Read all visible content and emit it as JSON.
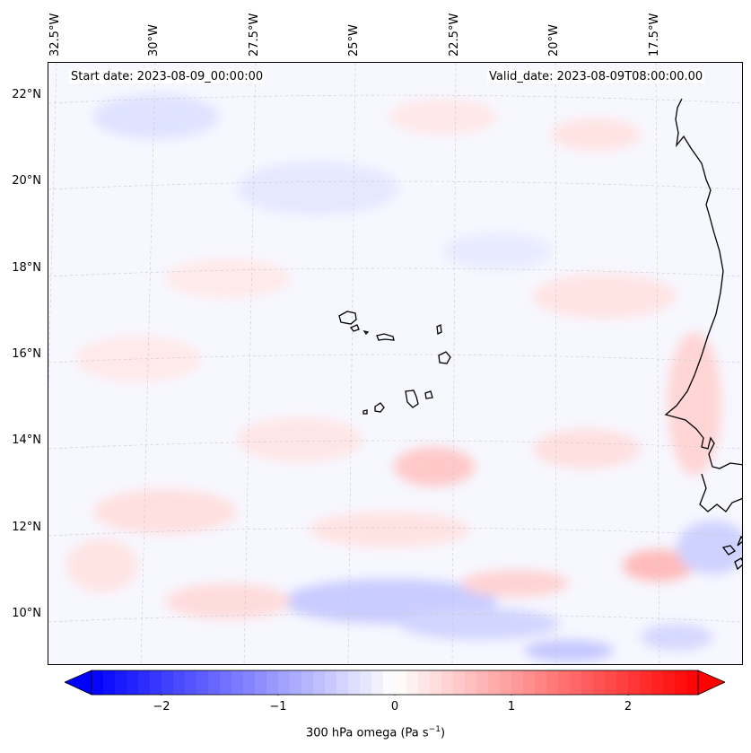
{
  "header": {
    "start_date": "Start date: 2023-08-09_00:00:00",
    "valid_date": "Valid_date: 2023-08-09T08:00:00.00"
  },
  "map": {
    "lon_labels": [
      "32.5°W",
      "30°W",
      "27.5°W",
      "25°W",
      "22.5°W",
      "20°W",
      "17.5°W"
    ],
    "lat_labels": [
      "22°N",
      "20°N",
      "18°N",
      "16°N",
      "14°N",
      "12°N",
      "10°N"
    ],
    "gridlines": "dashed",
    "field": "300 hPa omega",
    "features": [
      "Cape Verde islands",
      "West African coastline"
    ]
  },
  "colorbar": {
    "label_main": "300 hPa omega (Pa s",
    "label_sup": "−1",
    "label_end": ")",
    "ticks": [
      "−2",
      "−1",
      "0",
      "1",
      "2"
    ],
    "range": [
      -2.6,
      2.6
    ],
    "colormap": "bwr",
    "extend": "both",
    "colors": {
      "low": "#0000ff",
      "mid": "#ffffff",
      "high": "#ff0000"
    }
  }
}
